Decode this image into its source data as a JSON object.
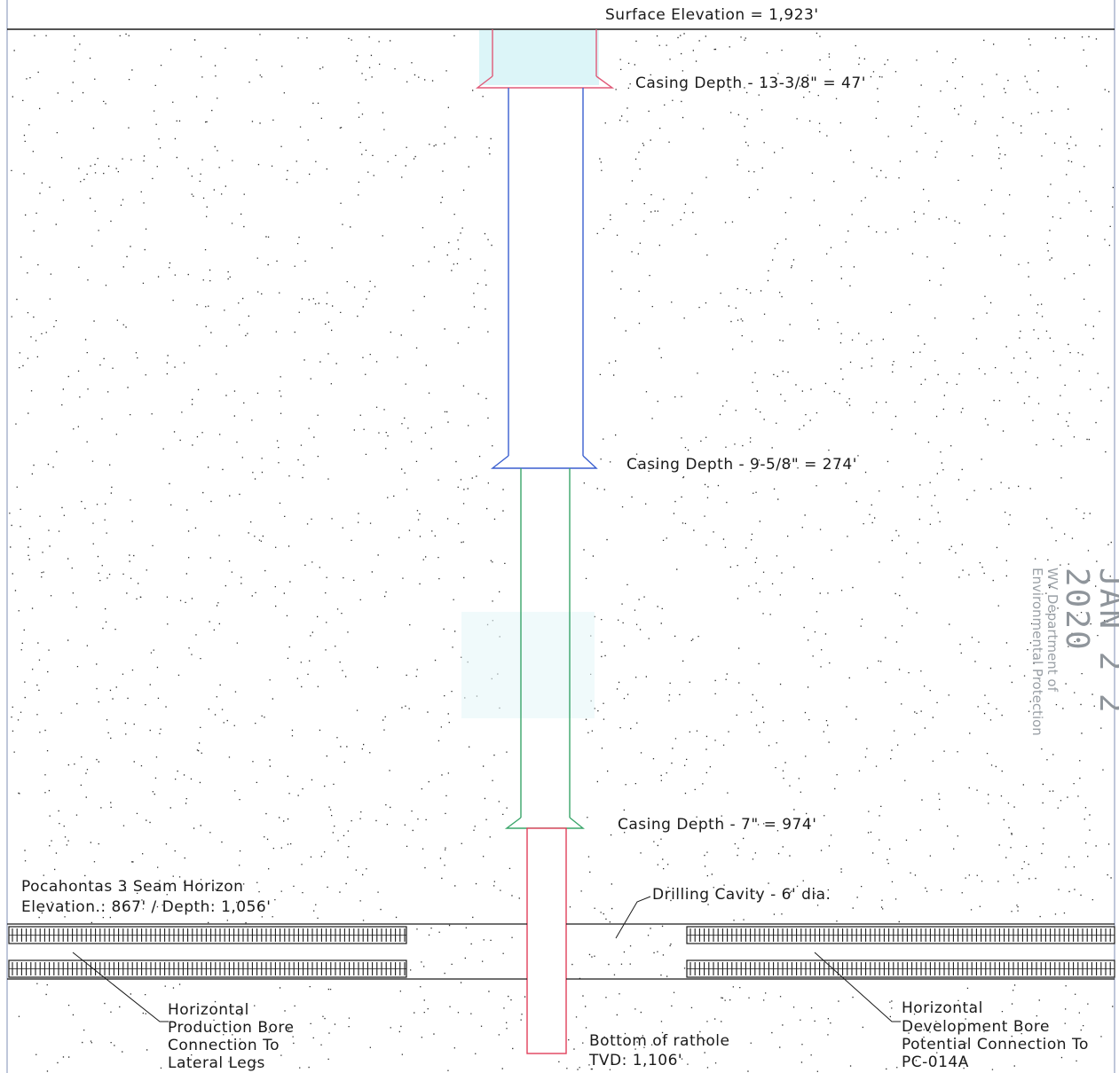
{
  "labels": {
    "surface_elevation": "Surface Elevation = 1,923'",
    "casing_1": "Casing Depth - 13-3/8\" = 47'",
    "casing_2": "Casing Depth - 9-5/8\" = 274'",
    "casing_3": "Casing Depth - 7\" = 974'",
    "seam_line1": "Pocahontas 3 Seam Horizon",
    "seam_line2": "Elevation.: 867' / Depth: 1,056'",
    "cavity": "Drilling Cavity - 6' dia.",
    "prod_bore_1": "Horizontal",
    "prod_bore_2": "Production Bore",
    "prod_bore_3": "Connection To",
    "prod_bore_4": "Lateral Legs",
    "rathole_1": "Bottom of rathole",
    "rathole_2": "TVD: 1,106'",
    "dev_bore_1": "Horizontal",
    "dev_bore_2": "Development Bore",
    "dev_bore_3": "Potential Connection To",
    "dev_bore_4": "PC-014A"
  },
  "stamp": {
    "date": "JAN 2 2 2020",
    "line1": "WV Department of",
    "line2": "Environmental Protection"
  },
  "colors": {
    "ink": "#1a1a1a",
    "casing_13_3_8": "#e05a78",
    "casing_9_5_8": "#3a5fcf",
    "casing_7": "#3aa56a",
    "rathole": "#e0405a",
    "wash": "#d6f3f7"
  }
}
